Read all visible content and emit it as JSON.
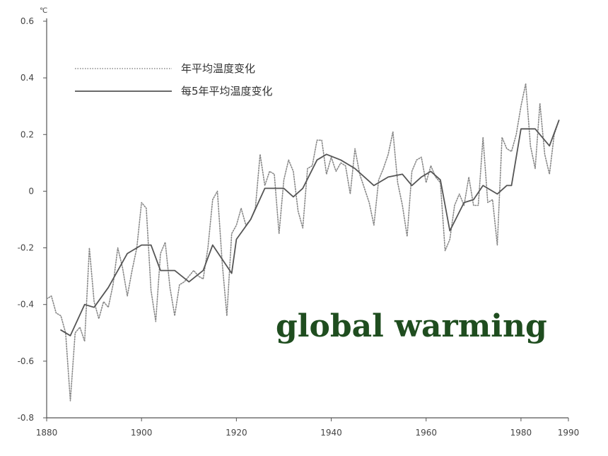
{
  "overlay_text": "global warming",
  "chart_data": {
    "type": "line",
    "unit": "℃",
    "xlim": [
      1880,
      1990
    ],
    "ylim": [
      -0.8,
      0.6
    ],
    "x_ticks": [
      1880,
      1900,
      1920,
      1940,
      1960,
      1980,
      1990
    ],
    "y_ticks": [
      0.6,
      0.4,
      0.2,
      0,
      -0.2,
      -0.4,
      -0.6,
      -0.8
    ],
    "y_tick_labels": [
      "0.6",
      "0.4",
      "0.2",
      "0",
      "-0.2",
      "-0.4",
      "-0.6",
      "-0.8"
    ],
    "legend_position": "top-left",
    "grid": false,
    "series": [
      {
        "name": "年平均温度变化",
        "style": "dotted",
        "color": "#888888",
        "x": [
          1880,
          1881,
          1882,
          1883,
          1884,
          1885,
          1886,
          1887,
          1888,
          1889,
          1890,
          1891,
          1892,
          1893,
          1894,
          1895,
          1896,
          1897,
          1898,
          1899,
          1900,
          1901,
          1902,
          1903,
          1904,
          1905,
          1906,
          1907,
          1908,
          1909,
          1910,
          1911,
          1912,
          1913,
          1914,
          1915,
          1916,
          1917,
          1918,
          1919,
          1920,
          1921,
          1922,
          1923,
          1924,
          1925,
          1926,
          1927,
          1928,
          1929,
          1930,
          1931,
          1932,
          1933,
          1934,
          1935,
          1936,
          1937,
          1938,
          1939,
          1940,
          1941,
          1942,
          1943,
          1944,
          1945,
          1946,
          1947,
          1948,
          1949,
          1950,
          1951,
          1952,
          1953,
          1954,
          1955,
          1956,
          1957,
          1958,
          1959,
          1960,
          1961,
          1962,
          1963,
          1964,
          1965,
          1966,
          1967,
          1968,
          1969,
          1970,
          1971,
          1972,
          1973,
          1974,
          1975,
          1976,
          1977,
          1978,
          1979,
          1980,
          1981,
          1982,
          1983,
          1984,
          1985,
          1986,
          1987,
          1988
        ],
        "y": [
          -0.38,
          -0.37,
          -0.43,
          -0.44,
          -0.5,
          -0.74,
          -0.5,
          -0.48,
          -0.53,
          -0.2,
          -0.39,
          -0.45,
          -0.39,
          -0.41,
          -0.33,
          -0.2,
          -0.27,
          -0.37,
          -0.28,
          -0.2,
          -0.04,
          -0.06,
          -0.35,
          -0.46,
          -0.22,
          -0.18,
          -0.34,
          -0.44,
          -0.33,
          -0.32,
          -0.3,
          -0.28,
          -0.3,
          -0.31,
          -0.2,
          -0.03,
          0,
          -0.25,
          -0.44,
          -0.15,
          -0.12,
          -0.06,
          -0.12,
          -0.1,
          -0.06,
          0.13,
          0.02,
          0.07,
          0.06,
          -0.15,
          0.04,
          0.11,
          0.07,
          -0.07,
          -0.13,
          0.08,
          0.09,
          0.18,
          0.18,
          0.06,
          0.12,
          0.07,
          0.1,
          0.09,
          -0.01,
          0.15,
          0.06,
          0.01,
          -0.04,
          -0.12,
          0.04,
          0.08,
          0.13,
          0.21,
          0.03,
          -0.05,
          -0.16,
          0.07,
          0.11,
          0.12,
          0.03,
          0.09,
          0.05,
          0.03,
          -0.21,
          -0.17,
          -0.05,
          -0.01,
          -0.05,
          0.05,
          -0.05,
          -0.05,
          0.19,
          -0.04,
          -0.03,
          -0.19,
          0.19,
          0.15,
          0.14,
          0.2,
          0.3,
          0.38,
          0.16,
          0.08,
          0.31,
          0.13,
          0.06,
          0.2,
          0.25
        ]
      },
      {
        "name": "每5年平均温度变化",
        "style": "solid",
        "color": "#555555",
        "x": [
          1883,
          1885,
          1888,
          1890,
          1893,
          1897,
          1900,
          1902,
          1904,
          1907,
          1910,
          1913,
          1915,
          1919,
          1920,
          1923,
          1926,
          1930,
          1932,
          1934,
          1937,
          1939,
          1942,
          1945,
          1949,
          1952,
          1955,
          1957,
          1959,
          1961,
          1963,
          1965,
          1968,
          1970,
          1972,
          1975,
          1977,
          1978,
          1980,
          1983,
          1986,
          1988
        ],
        "y": [
          -0.49,
          -0.51,
          -0.4,
          -0.41,
          -0.34,
          -0.22,
          -0.19,
          -0.19,
          -0.28,
          -0.28,
          -0.32,
          -0.28,
          -0.19,
          -0.29,
          -0.17,
          -0.1,
          0.01,
          0.01,
          -0.02,
          0.01,
          0.11,
          0.13,
          0.11,
          0.08,
          0.02,
          0.05,
          0.06,
          0.02,
          0.05,
          0.07,
          0.04,
          -0.14,
          -0.04,
          -0.03,
          0.02,
          -0.01,
          0.02,
          0.02,
          0.22,
          0.22,
          0.16,
          0.25
        ]
      }
    ]
  }
}
